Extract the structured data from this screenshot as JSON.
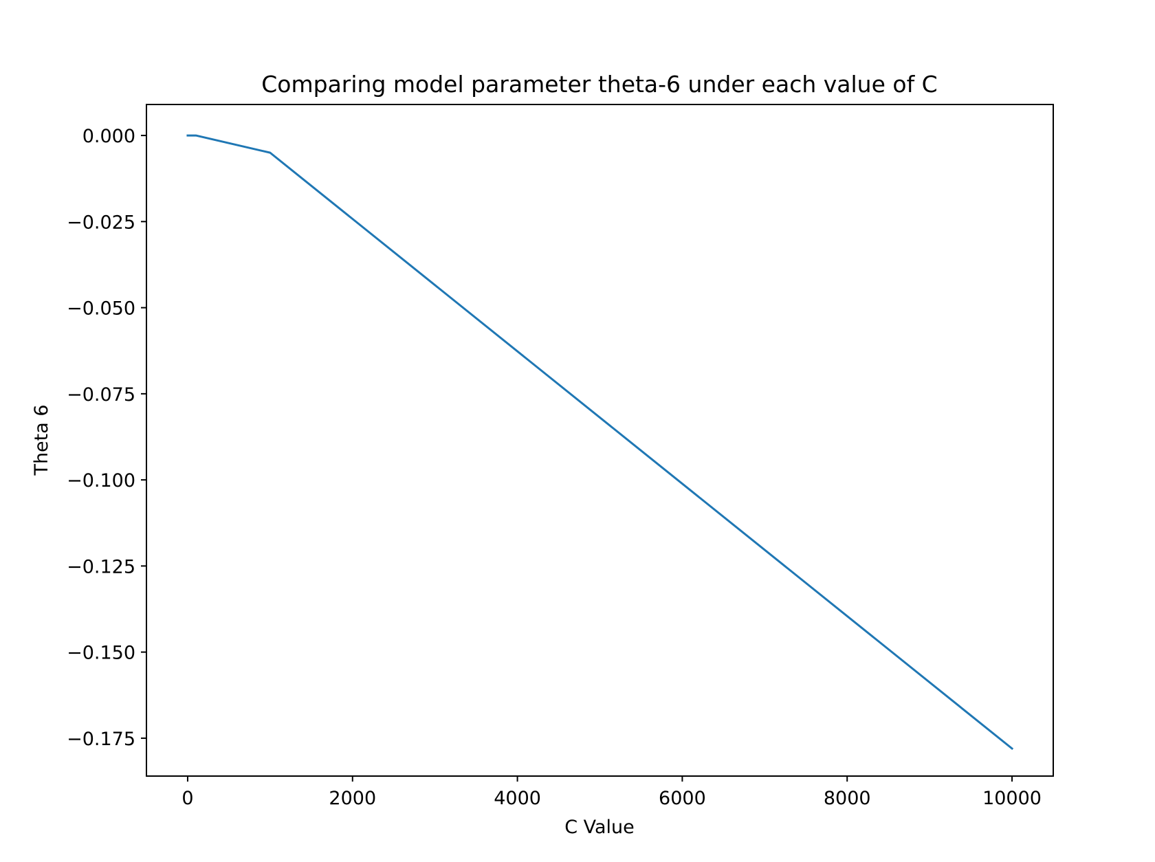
{
  "chart_data": {
    "type": "line",
    "title": "Comparing model parameter theta-6 under each value of C",
    "xlabel": "C Value",
    "ylabel": "Theta 6",
    "xlim": [
      -500,
      10500
    ],
    "ylim": [
      -0.186,
      0.009
    ],
    "xticks": [
      0,
      2000,
      4000,
      6000,
      8000,
      10000
    ],
    "xtick_labels": [
      "0",
      "2000",
      "4000",
      "6000",
      "8000",
      "10000"
    ],
    "yticks": [
      0.0,
      -0.025,
      -0.05,
      -0.075,
      -0.1,
      -0.125,
      -0.15,
      -0.175
    ],
    "ytick_labels": [
      "0.000",
      "−0.025",
      "−0.050",
      "−0.075",
      "−0.100",
      "−0.125",
      "−0.150",
      "−0.175"
    ],
    "grid": false,
    "series": [
      {
        "x": [
          0.001,
          0.01,
          0.1,
          1,
          10,
          100,
          1000,
          10000
        ],
        "y": [
          0.0,
          0.0,
          0.0,
          0.0,
          0.0,
          0.0,
          -0.005,
          -0.178
        ],
        "color": "#1f77b4"
      }
    ]
  }
}
